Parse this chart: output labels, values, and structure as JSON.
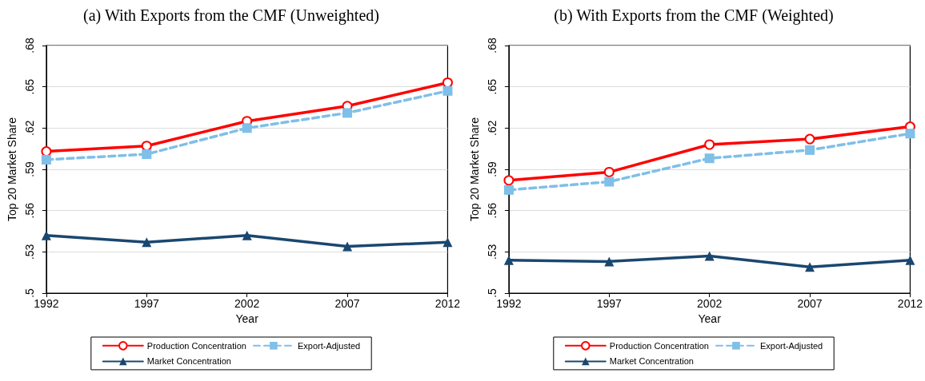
{
  "chart_data": [
    {
      "type": "line",
      "title": "(a) With Exports from the CMF (Unweighted)",
      "xlabel": "Year",
      "ylabel": "Top 20 Market Share",
      "x": [
        1992,
        1997,
        2002,
        2007,
        2012
      ],
      "series": [
        {
          "name": "Production Concentration",
          "color": "#ff0000",
          "marker": "circle",
          "line_style": "solid",
          "values": [
            0.603,
            0.607,
            0.625,
            0.636,
            0.653
          ]
        },
        {
          "name": "Export-Adjusted",
          "color": "#7fbfe8",
          "marker": "square",
          "line_style": "dashed",
          "values": [
            0.597,
            0.601,
            0.62,
            0.631,
            0.647
          ]
        },
        {
          "name": "Market Concentration",
          "color": "#1a4770",
          "marker": "triangle",
          "line_style": "solid",
          "values": [
            0.542,
            0.537,
            0.542,
            0.534,
            0.537
          ]
        }
      ],
      "xlim": [
        1992,
        2012
      ],
      "xticks": [
        1992,
        1997,
        2002,
        2007,
        2012
      ],
      "ylim": [
        0.5,
        0.68
      ],
      "yticks": [
        {
          "value": 0.5,
          "label": ".5"
        },
        {
          "value": 0.53,
          "label": ".53"
        },
        {
          "value": 0.56,
          "label": ".56"
        },
        {
          "value": 0.59,
          "label": ".59"
        },
        {
          "value": 0.62,
          "label": ".62"
        },
        {
          "value": 0.65,
          "label": ".65"
        },
        {
          "value": 0.68,
          "label": ".68"
        }
      ],
      "grid": "y",
      "legend": "bottom"
    },
    {
      "type": "line",
      "title": "(b) With Exports from the CMF (Weighted)",
      "xlabel": "Year",
      "ylabel": "Top 20 Market Share",
      "x": [
        1992,
        1997,
        2002,
        2007,
        2012
      ],
      "series": [
        {
          "name": "Production Concentration",
          "color": "#ff0000",
          "marker": "circle",
          "line_style": "solid",
          "values": [
            0.582,
            0.588,
            0.608,
            0.612,
            0.621
          ]
        },
        {
          "name": "Export-Adjusted",
          "color": "#7fbfe8",
          "marker": "square",
          "line_style": "dashed",
          "values": [
            0.575,
            0.581,
            0.598,
            0.604,
            0.616
          ]
        },
        {
          "name": "Market Concentration",
          "color": "#1a4770",
          "marker": "triangle",
          "line_style": "solid",
          "values": [
            0.524,
            0.523,
            0.527,
            0.519,
            0.524
          ]
        }
      ],
      "xlim": [
        1992,
        2012
      ],
      "xticks": [
        1992,
        1997,
        2002,
        2007,
        2012
      ],
      "ylim": [
        0.5,
        0.68
      ],
      "yticks": [
        {
          "value": 0.5,
          "label": ".5"
        },
        {
          "value": 0.53,
          "label": ".53"
        },
        {
          "value": 0.56,
          "label": ".56"
        },
        {
          "value": 0.59,
          "label": ".59"
        },
        {
          "value": 0.62,
          "label": ".62"
        },
        {
          "value": 0.65,
          "label": ".65"
        },
        {
          "value": 0.68,
          "label": ".68"
        }
      ],
      "grid": "y",
      "legend": "bottom"
    }
  ]
}
